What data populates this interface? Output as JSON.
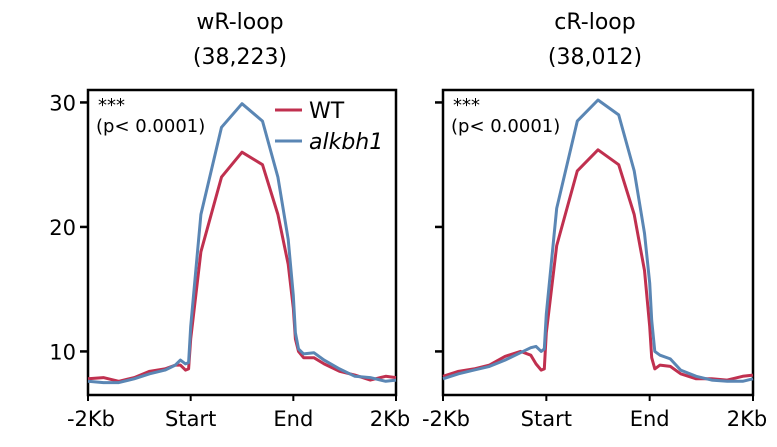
{
  "colors": {
    "WT": "#c0304f",
    "alkbh1": "#5a86b4"
  },
  "chart_data": [
    {
      "type": "line",
      "title": "wR-loop",
      "subtitle": "(38,223)",
      "xlabel": "",
      "ylabel": "",
      "ylim": [
        6.5,
        31
      ],
      "yticks": [
        10,
        20,
        30
      ],
      "xticks": [
        "-2Kb",
        "Start",
        "End",
        "2Kb"
      ],
      "annotation": [
        "***",
        "(p< 0.0001)"
      ],
      "legend": {
        "placement": "top-right",
        "entries": [
          "WT",
          "alkbh1"
        ]
      },
      "grid": false,
      "x": [
        0,
        0.15,
        0.3,
        0.45,
        0.6,
        0.75,
        0.85,
        0.9,
        0.95,
        0.98,
        1.0,
        1.1,
        1.3,
        1.5,
        1.7,
        1.85,
        1.95,
        2.0,
        2.02,
        2.05,
        2.1,
        2.2,
        2.3,
        2.45,
        2.6,
        2.75,
        2.9,
        3.0
      ],
      "series": [
        {
          "name": "WT",
          "color": "#c0304f",
          "y": [
            7.8,
            7.9,
            7.6,
            7.9,
            8.4,
            8.6,
            8.9,
            8.9,
            8.5,
            8.6,
            11.0,
            18.0,
            24.0,
            26.0,
            25.0,
            21.0,
            17.0,
            13.5,
            11.0,
            10.0,
            9.5,
            9.5,
            9.0,
            8.4,
            8.1,
            7.7,
            8.0,
            7.9
          ]
        },
        {
          "name": "alkbh1",
          "color": "#5a86b4",
          "y": [
            7.6,
            7.5,
            7.5,
            7.8,
            8.2,
            8.5,
            8.9,
            9.3,
            9.0,
            9.1,
            12.0,
            21.0,
            28.0,
            29.9,
            28.5,
            24.0,
            19.0,
            14.5,
            11.5,
            10.2,
            9.8,
            9.9,
            9.3,
            8.6,
            8.0,
            7.9,
            7.6,
            7.7
          ]
        }
      ]
    },
    {
      "type": "line",
      "title": "cR-loop",
      "subtitle": "(38,012)",
      "xlabel": "",
      "ylabel": "",
      "ylim": [
        6.5,
        31
      ],
      "yticks": [
        10,
        20,
        30
      ],
      "xticks": [
        "-2Kb",
        "Start",
        "End",
        "2Kb"
      ],
      "annotation": [
        "***",
        "(p< 0.0001)"
      ],
      "grid": false,
      "x": [
        0,
        0.15,
        0.3,
        0.45,
        0.6,
        0.75,
        0.85,
        0.9,
        0.95,
        0.98,
        1.0,
        1.1,
        1.3,
        1.5,
        1.7,
        1.85,
        1.95,
        2.0,
        2.02,
        2.05,
        2.1,
        2.2,
        2.3,
        2.45,
        2.6,
        2.75,
        2.9,
        3.0
      ],
      "series": [
        {
          "name": "WT",
          "color": "#c0304f",
          "y": [
            8.0,
            8.4,
            8.6,
            8.9,
            9.6,
            10.0,
            9.7,
            9.0,
            8.5,
            8.6,
            11.5,
            18.5,
            24.5,
            26.2,
            25.0,
            21.0,
            16.5,
            12.0,
            9.5,
            8.6,
            8.9,
            8.8,
            8.2,
            7.8,
            7.8,
            7.7,
            8.0,
            8.1
          ]
        },
        {
          "name": "alkbh1",
          "color": "#5a86b4",
          "y": [
            7.8,
            8.2,
            8.5,
            8.8,
            9.3,
            9.9,
            10.3,
            10.4,
            10.0,
            10.2,
            13.0,
            21.5,
            28.5,
            30.2,
            29.0,
            24.5,
            19.5,
            15.5,
            12.5,
            10.0,
            9.7,
            9.4,
            8.5,
            8.0,
            7.7,
            7.6,
            7.6,
            7.8
          ]
        }
      ]
    }
  ]
}
